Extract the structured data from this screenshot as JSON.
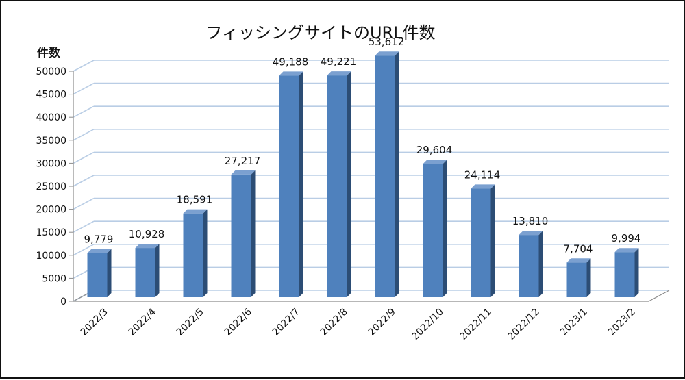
{
  "chart_data": {
    "type": "bar",
    "title": "フィッシングサイトのURL件数",
    "ylabel": "件数",
    "xlabel": "",
    "categories": [
      "2022/3",
      "2022/4",
      "2022/5",
      "2022/6",
      "2022/7",
      "2022/8",
      "2022/9",
      "2022/10",
      "2022/11",
      "2022/12",
      "2023/1",
      "2023/2"
    ],
    "values": [
      9779,
      10928,
      18591,
      27217,
      49188,
      49221,
      53612,
      29604,
      24114,
      13810,
      7704,
      9994
    ],
    "data_labels": [
      "9,779",
      "10,928",
      "18,591",
      "27,217",
      "49,188",
      "49,221",
      "53,612",
      "29,604",
      "24,114",
      "13,810",
      "7,704",
      "9,994"
    ],
    "y_ticks": [
      "0",
      "5000",
      "10000",
      "15000",
      "20000",
      "25000",
      "30000",
      "35000",
      "40000",
      "45000",
      "50000"
    ],
    "ylim": [
      0,
      50000
    ],
    "grid": true,
    "bar_style": "3d",
    "colors": {
      "bar_front": "#4f81bd",
      "bar_side": "#2c4d75",
      "bar_top": "#7ba0d0",
      "grid": "#b9cde5",
      "axis": "#8c8c8c"
    }
  }
}
